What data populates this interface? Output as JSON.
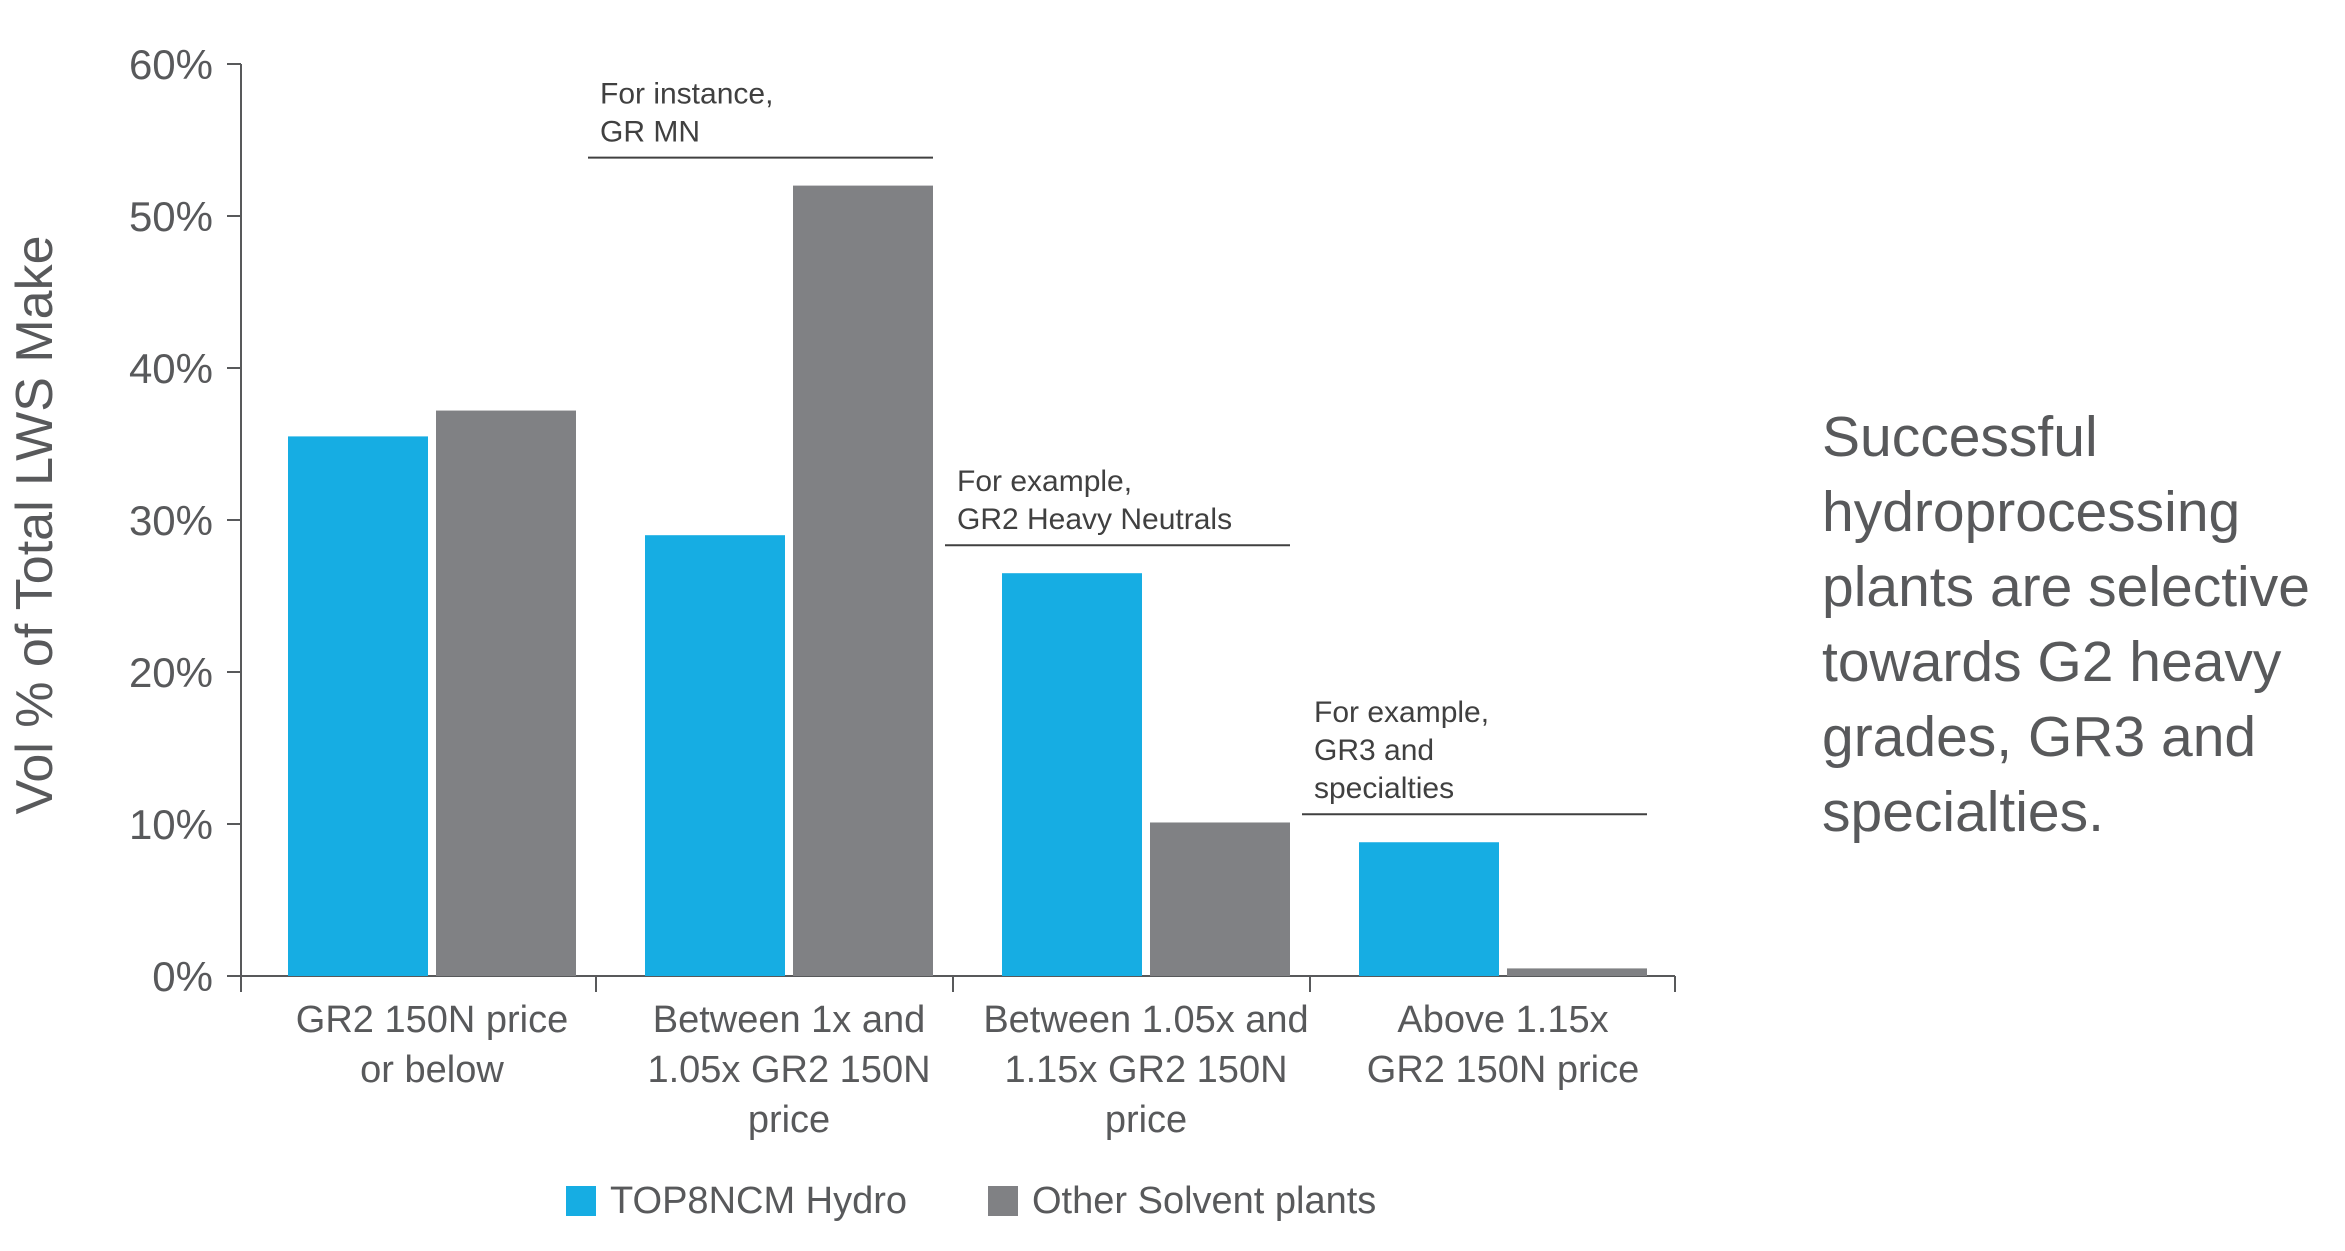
{
  "chart_data": {
    "type": "bar",
    "categories": [
      [
        "GR2 150N price",
        "or below"
      ],
      [
        "Between 1x and",
        "1.05x GR2 150N",
        "price"
      ],
      [
        "Between 1.05x and",
        "1.15x GR2 150N",
        "price"
      ],
      [
        "Above 1.15x",
        "GR2 150N price"
      ]
    ],
    "series": [
      {
        "name": "TOP8NCM Hydro",
        "color": "#16ade3",
        "values": [
          35.5,
          29.0,
          26.5,
          8.8
        ]
      },
      {
        "name": "Other Solvent plants",
        "color": "#808184",
        "values": [
          37.2,
          52.0,
          10.1,
          0.5
        ]
      }
    ],
    "ylabel": "Vol % of Total LWS Make",
    "ylim": [
      0,
      60
    ],
    "yticks": [
      "0%",
      "10%",
      "20%",
      "30%",
      "40%",
      "50%",
      "60%"
    ],
    "annotations": [
      {
        "category_index": 1,
        "lines": [
          "For instance,",
          "GR MN"
        ]
      },
      {
        "category_index": 2,
        "lines": [
          "For example,",
          "GR2 Heavy Neutrals"
        ]
      },
      {
        "category_index": 3,
        "lines": [
          "For example,",
          "GR3 and",
          "specialties"
        ]
      }
    ],
    "grid": false,
    "legend_position": "bottom"
  },
  "side_text": [
    "Successful",
    "hydroprocessing",
    "plants are selective",
    "towards G2 heavy",
    "grades, GR3 and",
    "specialties."
  ]
}
